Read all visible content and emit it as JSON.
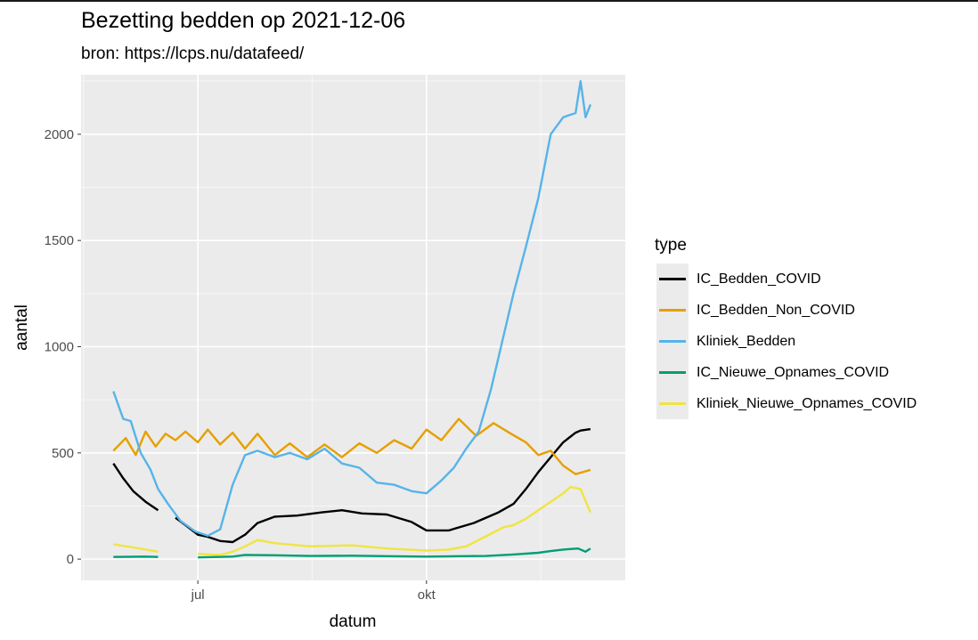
{
  "header": {
    "title": "Bezetting bedden op 2021-12-06",
    "subtitle": "bron: https://lcps.nu/datafeed/"
  },
  "chart_data": {
    "type": "line",
    "title": "Bezetting bedden op 2021-12-06",
    "subtitle": "bron: https://lcps.nu/datafeed/",
    "xlabel": "datum",
    "ylabel": "aantal",
    "x_ticks": [
      "jul",
      "okt"
    ],
    "y_ticks": [
      0,
      500,
      1000,
      1500,
      2000
    ],
    "xlim": [
      "2021-05-15",
      "2021-12-20"
    ],
    "ylim": [
      -100,
      2280
    ],
    "grid": true,
    "legend": {
      "title": "type",
      "position": "right"
    },
    "series": [
      {
        "name": "IC_Bedden_COVID",
        "color": "#000000",
        "x": [
          "2021-05-28",
          "2021-06-01",
          "2021-06-05",
          "2021-06-10",
          "2021-06-15",
          "2021-06-18",
          "2021-06-22",
          "2021-06-26",
          "2021-07-01",
          "2021-07-05",
          "2021-07-10",
          "2021-07-15",
          "2021-07-20",
          "2021-07-25",
          "2021-08-01",
          "2021-08-10",
          "2021-08-20",
          "2021-08-28",
          "2021-09-05",
          "2021-09-15",
          "2021-09-25",
          "2021-10-01",
          "2021-10-10",
          "2021-10-20",
          "2021-10-30",
          "2021-11-05",
          "2021-11-10",
          "2021-11-15",
          "2021-11-20",
          "2021-11-25",
          "2021-11-30",
          "2021-12-02",
          "2021-12-06"
        ],
        "y": [
          450,
          380,
          320,
          270,
          230,
          null,
          195,
          160,
          115,
          105,
          85,
          80,
          115,
          170,
          200,
          205,
          220,
          230,
          215,
          210,
          175,
          135,
          135,
          170,
          220,
          260,
          330,
          410,
          480,
          550,
          595,
          605,
          612
        ]
      },
      {
        "name": "IC_Bedden_Non_COVID",
        "color": "#E69F00",
        "x": [
          "2021-05-28",
          "2021-06-02",
          "2021-06-06",
          "2021-06-10",
          "2021-06-14",
          "2021-06-18",
          "2021-06-22",
          "2021-06-26",
          "2021-07-01",
          "2021-07-05",
          "2021-07-10",
          "2021-07-15",
          "2021-07-20",
          "2021-07-25",
          "2021-08-01",
          "2021-08-07",
          "2021-08-14",
          "2021-08-21",
          "2021-08-28",
          "2021-09-04",
          "2021-09-11",
          "2021-09-18",
          "2021-09-25",
          "2021-10-01",
          "2021-10-07",
          "2021-10-14",
          "2021-10-21",
          "2021-10-28",
          "2021-11-04",
          "2021-11-10",
          "2021-11-15",
          "2021-11-20",
          "2021-11-25",
          "2021-11-30",
          "2021-12-06"
        ],
        "y": [
          510,
          570,
          490,
          600,
          530,
          590,
          560,
          600,
          550,
          610,
          540,
          595,
          520,
          590,
          490,
          545,
          480,
          540,
          480,
          545,
          500,
          560,
          520,
          610,
          560,
          660,
          580,
          640,
          590,
          550,
          490,
          510,
          440,
          400,
          420
        ]
      },
      {
        "name": "Kliniek_Bedden",
        "color": "#56B4E9",
        "x": [
          "2021-05-28",
          "2021-06-01",
          "2021-06-04",
          "2021-06-08",
          "2021-06-12",
          "2021-06-15",
          "2021-06-19",
          "2021-06-24",
          "2021-06-30",
          "2021-07-05",
          "2021-07-10",
          "2021-07-15",
          "2021-07-20",
          "2021-07-25",
          "2021-08-01",
          "2021-08-07",
          "2021-08-14",
          "2021-08-21",
          "2021-08-28",
          "2021-09-04",
          "2021-09-11",
          "2021-09-18",
          "2021-09-25",
          "2021-10-01",
          "2021-10-07",
          "2021-10-12",
          "2021-10-17",
          "2021-10-22",
          "2021-10-27",
          "2021-11-01",
          "2021-11-05",
          "2021-11-10",
          "2021-11-15",
          "2021-11-20",
          "2021-11-25",
          "2021-11-30",
          "2021-12-02",
          "2021-12-04",
          "2021-12-06"
        ],
        "y": [
          790,
          660,
          650,
          500,
          420,
          330,
          260,
          180,
          130,
          110,
          140,
          350,
          490,
          510,
          480,
          500,
          470,
          520,
          450,
          430,
          360,
          350,
          320,
          310,
          370,
          430,
          520,
          600,
          800,
          1050,
          1250,
          1470,
          1700,
          2000,
          2080,
          2100,
          2250,
          2080,
          2140
        ]
      },
      {
        "name": "IC_Nieuwe_Opnames_COVID",
        "color": "#009E73",
        "x": [
          "2021-05-28",
          "2021-06-10",
          "2021-06-15",
          "2021-06-18",
          "2021-07-01",
          "2021-07-15",
          "2021-07-20",
          "2021-08-01",
          "2021-08-15",
          "2021-09-01",
          "2021-09-15",
          "2021-10-01",
          "2021-10-15",
          "2021-10-25",
          "2021-11-05",
          "2021-11-15",
          "2021-11-20",
          "2021-11-25",
          "2021-12-01",
          "2021-12-04",
          "2021-12-06"
        ],
        "y": [
          10,
          12,
          10,
          null,
          8,
          12,
          20,
          18,
          15,
          16,
          14,
          12,
          14,
          15,
          22,
          30,
          38,
          45,
          50,
          35,
          50
        ]
      },
      {
        "name": "Kliniek_Nieuwe_Opnames_COVID",
        "color": "#F0E442",
        "x": [
          "2021-05-28",
          "2021-06-05",
          "2021-06-15",
          "2021-06-18",
          "2021-07-01",
          "2021-07-10",
          "2021-07-15",
          "2021-07-20",
          "2021-07-25",
          "2021-08-01",
          "2021-08-15",
          "2021-09-01",
          "2021-09-15",
          "2021-10-01",
          "2021-10-10",
          "2021-10-17",
          "2021-10-22",
          "2021-10-27",
          "2021-11-01",
          "2021-11-05",
          "2021-11-10",
          "2021-11-15",
          "2021-11-20",
          "2021-11-25",
          "2021-11-28",
          "2021-12-02",
          "2021-12-06"
        ],
        "y": [
          70,
          55,
          35,
          null,
          25,
          20,
          35,
          60,
          90,
          75,
          60,
          65,
          50,
          40,
          45,
          60,
          90,
          120,
          150,
          160,
          190,
          230,
          270,
          310,
          340,
          330,
          220
        ]
      }
    ]
  }
}
